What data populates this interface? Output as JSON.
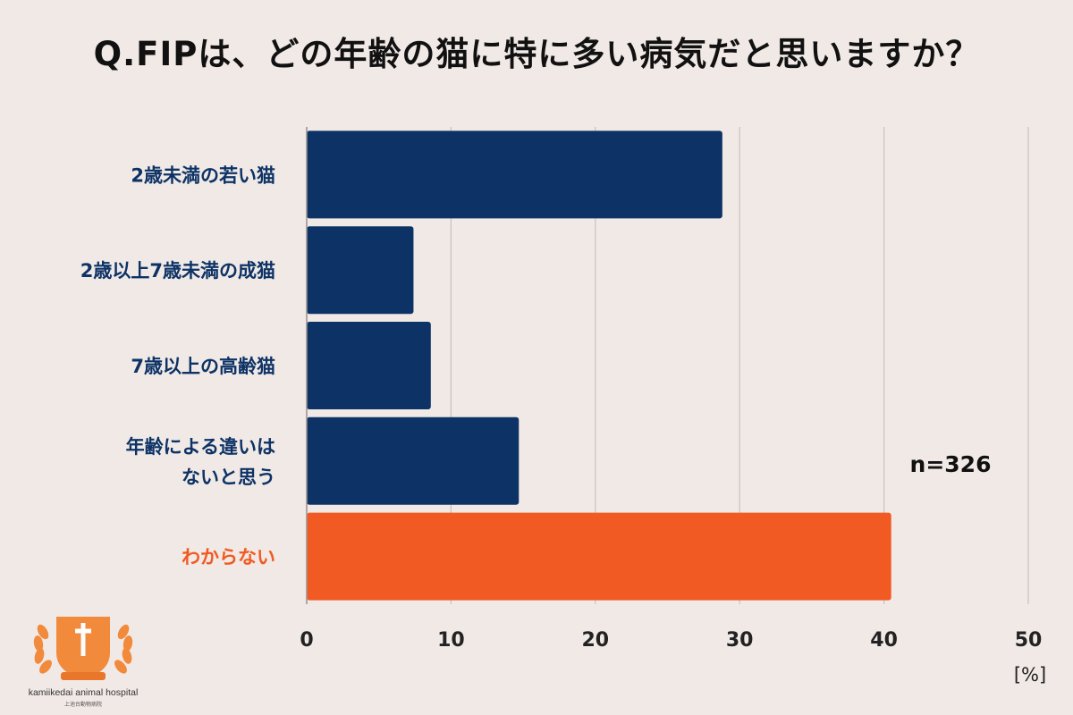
{
  "title": "Q.FIPは、どの年齢の猫に特に多い病気だと思いますか？",
  "chart_data": {
    "type": "bar",
    "orientation": "horizontal",
    "categories": [
      [
        "2歳未満の若い猫"
      ],
      [
        "2歳以上7歳未満の成猫"
      ],
      [
        "7歳以上の高齢猫"
      ],
      [
        "年齢による違いは",
        "ないと思う"
      ],
      [
        "わからない"
      ]
    ],
    "values": [
      28.8,
      7.4,
      8.6,
      14.7,
      40.5
    ],
    "bar_colors": [
      "#0d3366",
      "#0d3366",
      "#0d3366",
      "#0d3366",
      "#f15a22"
    ],
    "label_colors": [
      "#0d3366",
      "#0d3366",
      "#0d3366",
      "#0d3366",
      "#f15a22"
    ],
    "xlim": [
      0,
      50
    ],
    "xticks": [
      "0",
      "10",
      "20",
      "30",
      "40",
      "50"
    ],
    "xunit": "[%]",
    "n_label": "n=326",
    "grid": true
  },
  "logo": {
    "name": "kamiikedai animal hospital",
    "subname": "上池台動物病院",
    "ribbon": "kamiikedai"
  }
}
